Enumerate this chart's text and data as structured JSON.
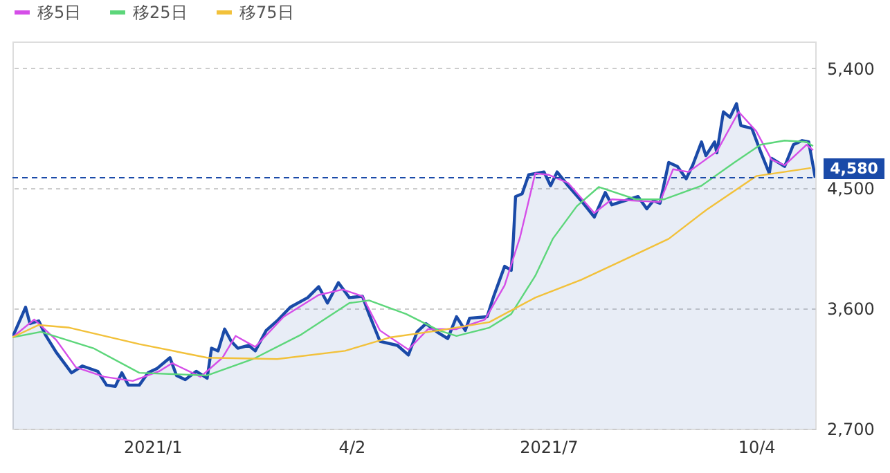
{
  "chart_data": {
    "type": "line",
    "xlim": [
      "2020-10-29",
      "2021-10-31"
    ],
    "xticks": [
      {
        "value": "2021-01-01",
        "label": "2021/1"
      },
      {
        "value": "2021-04-02",
        "label": "4/2"
      },
      {
        "value": "2021-07-01",
        "label": "2021/7"
      },
      {
        "value": "2021-10-04",
        "label": "10/4"
      }
    ],
    "ylim": [
      2700,
      5600
    ],
    "yticks": [
      {
        "value": 2700,
        "label": "2,700"
      },
      {
        "value": 3600,
        "label": "3,600"
      },
      {
        "value": 4500,
        "label": "4,500"
      },
      {
        "value": 5400,
        "label": "5,400"
      }
    ],
    "grid": "y",
    "legend": "top left",
    "ref_lines": [
      {
        "axis": "y",
        "value": 4580,
        "label": "4,580",
        "color": "#1a4aa8",
        "line_style": "dashed"
      }
    ],
    "series": [
      {
        "type": "area",
        "color": "#1a4aa8",
        "x": [
          "2020-10-29",
          "2020-11-04",
          "2020-11-06",
          "2020-11-10",
          "2020-11-13",
          "2020-11-18",
          "2020-11-25",
          "2020-11-30",
          "2020-12-07",
          "2020-12-11",
          "2020-12-15",
          "2020-12-18",
          "2020-12-21",
          "2020-12-26",
          "2020-12-30",
          "2021-01-03",
          "2021-01-09",
          "2021-01-12",
          "2021-01-16",
          "2021-01-21",
          "2021-01-26",
          "2021-01-28",
          "2021-01-31",
          "2021-02-03",
          "2021-02-06",
          "2021-02-09",
          "2021-02-14",
          "2021-02-17",
          "2021-02-22",
          "2021-02-27",
          "2021-03-05",
          "2021-03-13",
          "2021-03-18",
          "2021-03-22",
          "2021-03-27",
          "2021-04-01",
          "2021-04-07",
          "2021-04-10",
          "2021-04-15",
          "2021-04-23",
          "2021-04-28",
          "2021-05-02",
          "2021-05-06",
          "2021-05-11",
          "2021-05-16",
          "2021-05-20",
          "2021-05-24",
          "2021-05-26",
          "2021-06-03",
          "2021-06-06",
          "2021-06-11",
          "2021-06-14",
          "2021-06-15",
          "2021-06-16",
          "2021-06-19",
          "2021-06-22",
          "2021-06-29",
          "2021-07-02",
          "2021-07-05",
          "2021-07-10",
          "2021-07-16",
          "2021-07-22",
          "2021-07-27",
          "2021-07-30",
          "2021-08-05",
          "2021-08-11",
          "2021-08-15",
          "2021-08-18",
          "2021-08-21",
          "2021-08-25",
          "2021-08-29",
          "2021-09-02",
          "2021-09-05",
          "2021-09-09",
          "2021-09-11",
          "2021-09-15",
          "2021-09-16",
          "2021-09-19",
          "2021-09-22",
          "2021-09-25",
          "2021-09-27",
          "2021-10-02",
          "2021-10-06",
          "2021-10-10",
          "2021-10-11",
          "2021-10-17",
          "2021-10-21",
          "2021-10-25",
          "2021-10-28",
          "2021-10-31"
        ],
        "values": [
          3385,
          3610,
          3487,
          3508,
          3405,
          3273,
          3119,
          3170,
          3130,
          3027,
          3017,
          3119,
          3027,
          3027,
          3119,
          3150,
          3232,
          3099,
          3068,
          3130,
          3078,
          3303,
          3283,
          3447,
          3355,
          3303,
          3324,
          3283,
          3436,
          3508,
          3610,
          3682,
          3764,
          3641,
          3794,
          3682,
          3692,
          3559,
          3355,
          3324,
          3252,
          3426,
          3487,
          3426,
          3375,
          3539,
          3436,
          3528,
          3539,
          3692,
          3917,
          3886,
          4122,
          4439,
          4459,
          4602,
          4623,
          4520,
          4623,
          4520,
          4408,
          4285,
          4469,
          4377,
          4408,
          4439,
          4347,
          4408,
          4388,
          4694,
          4664,
          4572,
          4674,
          4848,
          4745,
          4848,
          4766,
          5073,
          5032,
          5134,
          4970,
          4950,
          4776,
          4612,
          4725,
          4664,
          4827,
          4858,
          4848,
          4580
        ]
      },
      {
        "name": "移5日",
        "color": "#d54ee8",
        "x": [
          "2020-10-29",
          "2020-11-08",
          "2020-11-18",
          "2020-11-27",
          "2020-12-10",
          "2020-12-23",
          "2021-01-04",
          "2021-01-10",
          "2021-01-23",
          "2021-02-02",
          "2021-02-08",
          "2021-02-17",
          "2021-03-02",
          "2021-03-18",
          "2021-03-29",
          "2021-04-07",
          "2021-04-15",
          "2021-04-28",
          "2021-05-07",
          "2021-05-20",
          "2021-06-02",
          "2021-06-11",
          "2021-06-18",
          "2021-06-25",
          "2021-07-01",
          "2021-07-10",
          "2021-07-22",
          "2021-07-30",
          "2021-08-10",
          "2021-08-21",
          "2021-08-27",
          "2021-09-03",
          "2021-09-16",
          "2021-09-26",
          "2021-10-04",
          "2021-10-11",
          "2021-10-17",
          "2021-10-27",
          "2021-10-30"
        ],
        "values": [
          3385,
          3518,
          3365,
          3160,
          3089,
          3058,
          3130,
          3191,
          3089,
          3232,
          3395,
          3313,
          3539,
          3702,
          3743,
          3692,
          3436,
          3293,
          3446,
          3446,
          3518,
          3774,
          4132,
          4613,
          4602,
          4541,
          4316,
          4418,
          4408,
          4398,
          4643,
          4623,
          4776,
          5073,
          4929,
          4715,
          4674,
          4827,
          4786
        ]
      },
      {
        "name": "移25日",
        "color": "#5cd67a",
        "x": [
          "2020-10-29",
          "2020-11-11",
          "2020-12-05",
          "2020-12-26",
          "2021-01-26",
          "2021-02-16",
          "2021-03-10",
          "2021-04-01",
          "2021-04-10",
          "2021-04-27",
          "2021-05-12",
          "2021-05-20",
          "2021-06-04",
          "2021-06-14",
          "2021-06-25",
          "2021-07-03",
          "2021-07-14",
          "2021-07-24",
          "2021-08-10",
          "2021-08-23",
          "2021-09-09",
          "2021-09-24",
          "2021-10-06",
          "2021-10-17",
          "2021-10-27",
          "2021-10-30"
        ],
        "values": [
          3385,
          3426,
          3303,
          3119,
          3099,
          3222,
          3405,
          3641,
          3661,
          3559,
          3436,
          3395,
          3457,
          3559,
          3845,
          4122,
          4367,
          4510,
          4418,
          4418,
          4520,
          4694,
          4827,
          4858,
          4848,
          4817
        ]
      },
      {
        "name": "移75日",
        "color": "#f2c13a",
        "x": [
          "2020-10-29",
          "2020-11-10",
          "2020-11-24",
          "2020-12-26",
          "2021-01-26",
          "2021-02-27",
          "2021-03-30",
          "2021-04-20",
          "2021-05-12",
          "2021-06-04",
          "2021-06-25",
          "2021-07-16",
          "2021-08-05",
          "2021-08-25",
          "2021-09-11",
          "2021-10-04",
          "2021-10-29"
        ],
        "values": [
          3385,
          3477,
          3457,
          3334,
          3232,
          3222,
          3283,
          3385,
          3436,
          3498,
          3682,
          3815,
          3968,
          4122,
          4336,
          4592,
          4653
        ]
      }
    ]
  }
}
